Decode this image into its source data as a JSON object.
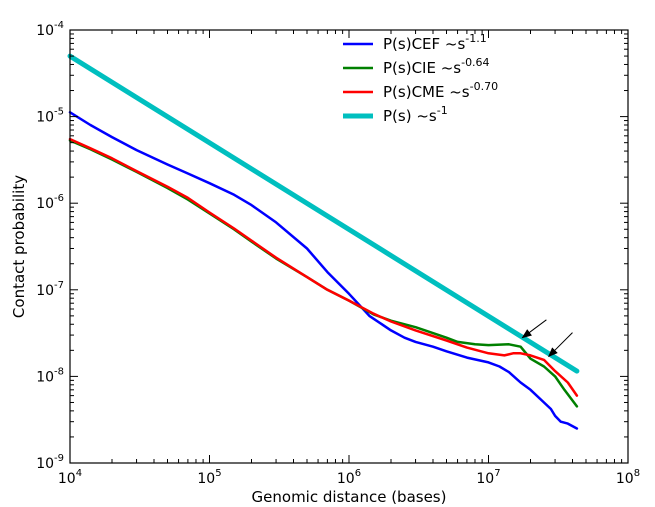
{
  "chart_data": {
    "type": "line",
    "xlabel": "Genomic distance (bases)",
    "ylabel": "Contact probability",
    "xscale": "log",
    "yscale": "log",
    "xlim": [
      10000,
      100000000
    ],
    "ylim": [
      1e-09,
      0.0001
    ],
    "grid": false,
    "legend_position": "top-right",
    "x_ticks": [
      {
        "base": "10",
        "exp": "4"
      },
      {
        "base": "10",
        "exp": "5"
      },
      {
        "base": "10",
        "exp": "6"
      },
      {
        "base": "10",
        "exp": "7"
      },
      {
        "base": "10",
        "exp": "8"
      }
    ],
    "y_ticks": [
      {
        "base": "10",
        "exp": "-9"
      },
      {
        "base": "10",
        "exp": "-8"
      },
      {
        "base": "10",
        "exp": "-7"
      },
      {
        "base": "10",
        "exp": "-6"
      },
      {
        "base": "10",
        "exp": "-5"
      },
      {
        "base": "10",
        "exp": "-4"
      }
    ],
    "series": [
      {
        "name": "P(s)CEF ~s",
        "name_exp": "-1.1",
        "color": "#0000ff",
        "points": [
          [
            10000,
            1.12e-05
          ],
          [
            14000,
            8e-06
          ],
          [
            20000,
            5.8e-06
          ],
          [
            30000,
            4.1e-06
          ],
          [
            50000,
            2.8e-06
          ],
          [
            70000,
            2.2e-06
          ],
          [
            100000,
            1.7e-06
          ],
          [
            150000,
            1.25e-06
          ],
          [
            200000,
            9.5e-07
          ],
          [
            300000,
            6e-07
          ],
          [
            500000,
            3e-07
          ],
          [
            700000,
            1.6e-07
          ],
          [
            1000000,
            9e-08
          ],
          [
            1400000,
            5e-08
          ],
          [
            2000000,
            3.4e-08
          ],
          [
            2500000,
            2.8e-08
          ],
          [
            3000000,
            2.5e-08
          ],
          [
            4000000,
            2.2e-08
          ],
          [
            5000000,
            1.95e-08
          ],
          [
            7000000,
            1.65e-08
          ],
          [
            10000000,
            1.45e-08
          ],
          [
            12000000,
            1.3e-08
          ],
          [
            14000000,
            1.12e-08
          ],
          [
            17000000,
            8.5e-09
          ],
          [
            20000000,
            7e-09
          ],
          [
            25000000,
            5e-09
          ],
          [
            28000000,
            4.2e-09
          ],
          [
            30000000,
            3.5e-09
          ],
          [
            33000000,
            3e-09
          ],
          [
            37000000,
            2.85e-09
          ],
          [
            43000000,
            2.5e-09
          ]
        ]
      },
      {
        "name": "P(s)CIE ~s",
        "name_exp": "-0.64",
        "color": "#008000",
        "points": [
          [
            10000,
            5.3e-06
          ],
          [
            14000,
            4.2e-06
          ],
          [
            20000,
            3.2e-06
          ],
          [
            30000,
            2.3e-06
          ],
          [
            50000,
            1.5e-06
          ],
          [
            70000,
            1.1e-06
          ],
          [
            100000,
            7.6e-07
          ],
          [
            150000,
            5e-07
          ],
          [
            200000,
            3.6e-07
          ],
          [
            300000,
            2.3e-07
          ],
          [
            500000,
            1.4e-07
          ],
          [
            700000,
            1e-07
          ],
          [
            1000000,
            7.5e-08
          ],
          [
            1500000,
            5.2e-08
          ],
          [
            2000000,
            4.4e-08
          ],
          [
            3000000,
            3.7e-08
          ],
          [
            5000000,
            2.8e-08
          ],
          [
            6000000,
            2.5e-08
          ],
          [
            8000000,
            2.35e-08
          ],
          [
            10000000,
            2.3e-08
          ],
          [
            14000000,
            2.35e-08
          ],
          [
            17000000,
            2.2e-08
          ],
          [
            20000000,
            1.6e-08
          ],
          [
            25000000,
            1.3e-08
          ],
          [
            30000000,
            1e-08
          ],
          [
            35000000,
            7e-09
          ],
          [
            43000000,
            4.5e-09
          ]
        ]
      },
      {
        "name": "P(s)CME ~s",
        "name_exp": "-0.70",
        "color": "#ff0000",
        "points": [
          [
            10000,
            5.5e-06
          ],
          [
            14000,
            4.3e-06
          ],
          [
            20000,
            3.3e-06
          ],
          [
            30000,
            2.35e-06
          ],
          [
            50000,
            1.55e-06
          ],
          [
            70000,
            1.15e-06
          ],
          [
            100000,
            7.8e-07
          ],
          [
            150000,
            5.1e-07
          ],
          [
            200000,
            3.7e-07
          ],
          [
            300000,
            2.35e-07
          ],
          [
            500000,
            1.4e-07
          ],
          [
            700000,
            1e-07
          ],
          [
            1000000,
            7.5e-08
          ],
          [
            1500000,
            5.3e-08
          ],
          [
            2000000,
            4.3e-08
          ],
          [
            3000000,
            3.4e-08
          ],
          [
            5000000,
            2.6e-08
          ],
          [
            7000000,
            2.15e-08
          ],
          [
            10000000,
            1.85e-08
          ],
          [
            13000000,
            1.75e-08
          ],
          [
            15000000,
            1.85e-08
          ],
          [
            17000000,
            1.85e-08
          ],
          [
            20000000,
            1.75e-08
          ],
          [
            25000000,
            1.55e-08
          ],
          [
            30000000,
            1.15e-08
          ],
          [
            37000000,
            8.5e-09
          ],
          [
            43000000,
            6e-09
          ]
        ]
      },
      {
        "name": "P(s) ~s",
        "name_exp": "-1",
        "color": "#00bfbf",
        "points": [
          [
            10000,
            5e-05
          ],
          [
            43000000,
            1.15e-08
          ]
        ]
      }
    ],
    "annotations": [
      {
        "type": "arrow",
        "from": [
          26000000,
          4.5e-08
        ],
        "to": [
          17500000,
          2.8e-08
        ]
      },
      {
        "type": "arrow",
        "from": [
          40000000,
          3.2e-08
        ],
        "to": [
          27000000,
          1.7e-08
        ]
      }
    ]
  }
}
